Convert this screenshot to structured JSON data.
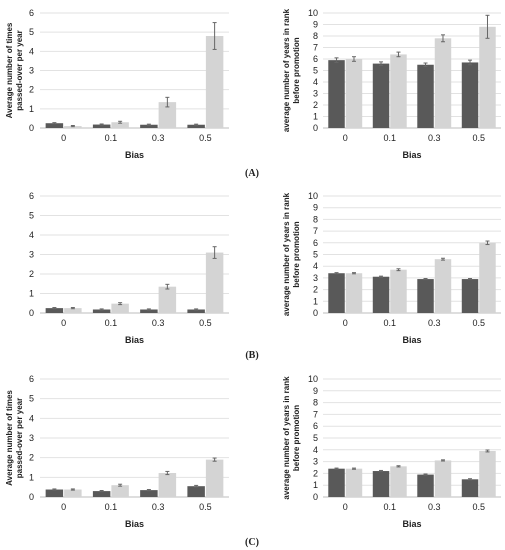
{
  "panel_labels": [
    "(A)",
    "(B)",
    "(C)"
  ],
  "chart_data": [
    {
      "type": "bar",
      "panel": "(A)",
      "categories": [
        "0",
        "0.1",
        "0.3",
        "0.5"
      ],
      "xlabel": "Bias",
      "ylabel": [
        "Average number of times",
        "passed-over per year"
      ],
      "ylim": [
        0,
        6
      ],
      "yticks": [
        0,
        1,
        2,
        3,
        4,
        5,
        6
      ],
      "colors": [
        "#595959",
        "#d4d4d4"
      ],
      "series": [
        {
          "values": [
            0.25,
            0.18,
            0.17,
            0.17
          ],
          "errors": [
            0.03,
            0.03,
            0.03,
            0.03
          ]
        },
        {
          "values": [
            0.1,
            0.3,
            1.35,
            4.8
          ],
          "errors": [
            0.03,
            0.05,
            0.25,
            0.7
          ]
        }
      ]
    },
    {
      "type": "bar",
      "panel": "(A)",
      "categories": [
        "0",
        "0.1",
        "0.3",
        "0.5"
      ],
      "xlabel": "Bias",
      "ylabel": [
        "average number of years in rank",
        "before promotion"
      ],
      "ylim": [
        0,
        10
      ],
      "yticks": [
        0,
        1,
        2,
        3,
        4,
        5,
        6,
        7,
        8,
        9,
        10
      ],
      "colors": [
        "#595959",
        "#d4d4d4"
      ],
      "series": [
        {
          "values": [
            5.9,
            5.6,
            5.5,
            5.7
          ],
          "errors": [
            0.2,
            0.15,
            0.15,
            0.2
          ]
        },
        {
          "values": [
            6.0,
            6.4,
            7.8,
            8.8
          ],
          "errors": [
            0.2,
            0.2,
            0.3,
            1.0
          ]
        }
      ]
    },
    {
      "type": "bar",
      "panel": "(B)",
      "categories": [
        "0",
        "0.1",
        "0.3",
        "0.5"
      ],
      "xlabel": "Bias",
      "ylabel": [],
      "ylim": [
        0,
        6
      ],
      "yticks": [
        0,
        1,
        2,
        3,
        4,
        5,
        6
      ],
      "colors": [
        "#595959",
        "#d4d4d4"
      ],
      "series": [
        {
          "values": [
            0.25,
            0.18,
            0.18,
            0.18
          ],
          "errors": [
            0.03,
            0.03,
            0.03,
            0.03
          ]
        },
        {
          "values": [
            0.25,
            0.48,
            1.35,
            3.1
          ],
          "errors": [
            0.03,
            0.05,
            0.12,
            0.3
          ]
        }
      ]
    },
    {
      "type": "bar",
      "panel": "(B)",
      "categories": [
        "0",
        "0.1",
        "0.3",
        "0.5"
      ],
      "xlabel": "Bias",
      "ylabel": [
        "average number of years in rank",
        "before promotion"
      ],
      "ylim": [
        0,
        10
      ],
      "yticks": [
        0,
        1,
        2,
        3,
        4,
        5,
        6,
        7,
        8,
        9,
        10
      ],
      "colors": [
        "#595959",
        "#d4d4d4"
      ],
      "series": [
        {
          "values": [
            3.4,
            3.1,
            2.9,
            2.9
          ],
          "errors": [
            0.05,
            0.05,
            0.05,
            0.05
          ]
        },
        {
          "values": [
            3.4,
            3.7,
            4.6,
            6.0
          ],
          "errors": [
            0.05,
            0.08,
            0.08,
            0.15
          ]
        }
      ]
    },
    {
      "type": "bar",
      "panel": "(C)",
      "categories": [
        "0",
        "0.1",
        "0.3",
        "0.5"
      ],
      "xlabel": "Bias",
      "ylabel": [
        "Average number of times",
        "passed-over per year"
      ],
      "ylim": [
        0,
        6
      ],
      "yticks": [
        0,
        1,
        2,
        3,
        4,
        5,
        6
      ],
      "colors": [
        "#595959",
        "#d4d4d4"
      ],
      "series": [
        {
          "values": [
            0.38,
            0.3,
            0.35,
            0.55
          ],
          "errors": [
            0.03,
            0.03,
            0.03,
            0.04
          ]
        },
        {
          "values": [
            0.38,
            0.6,
            1.22,
            1.9
          ],
          "errors": [
            0.03,
            0.05,
            0.08,
            0.08
          ]
        }
      ]
    },
    {
      "type": "bar",
      "panel": "(C)",
      "categories": [
        "0",
        "0.1",
        "0.3",
        "0.5"
      ],
      "xlabel": "Bias",
      "ylabel": [
        "average number of years in rank",
        "before promotion"
      ],
      "ylim": [
        0,
        10
      ],
      "yticks": [
        0,
        1,
        2,
        3,
        4,
        5,
        6,
        7,
        8,
        9,
        10
      ],
      "colors": [
        "#595959",
        "#d4d4d4"
      ],
      "series": [
        {
          "values": [
            2.4,
            2.2,
            1.9,
            1.5
          ],
          "errors": [
            0.05,
            0.05,
            0.05,
            0.05
          ]
        },
        {
          "values": [
            2.4,
            2.6,
            3.1,
            3.9
          ],
          "errors": [
            0.05,
            0.05,
            0.05,
            0.08
          ]
        }
      ]
    }
  ]
}
